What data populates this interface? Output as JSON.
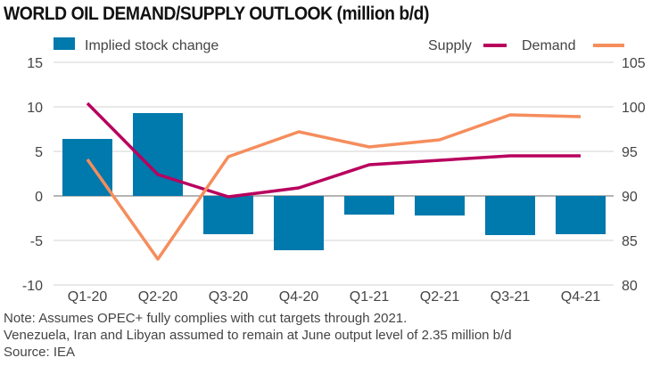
{
  "chart_data": {
    "type": "bar+line",
    "title": "WORLD OIL DEMAND/SUPPLY OUTLOOK (million b/d)",
    "categories": [
      "Q1-20",
      "Q2-20",
      "Q3-20",
      "Q4-20",
      "Q1-21",
      "Q2-21",
      "Q3-21",
      "Q4-21"
    ],
    "left_axis": {
      "ylim": [
        -10,
        15
      ],
      "ticks": [
        15,
        10,
        5,
        0,
        -5,
        -10
      ]
    },
    "right_axis": {
      "ylim": [
        80,
        105
      ],
      "ticks": [
        105,
        100,
        95,
        90,
        85,
        80
      ]
    },
    "grid": true,
    "legend_placement": "top",
    "series": [
      {
        "name": "Implied stock change",
        "type": "bar",
        "axis": "left",
        "color": "#0079ad",
        "values": [
          6.4,
          9.3,
          -4.3,
          -6.1,
          -2.1,
          -2.2,
          -4.4,
          -4.3
        ]
      },
      {
        "name": "Supply",
        "type": "line",
        "axis": "right",
        "color": "#b8005e",
        "values": [
          100.4,
          92.4,
          89.9,
          90.9,
          93.5,
          94.0,
          94.5,
          94.5
        ]
      },
      {
        "name": "Demand",
        "type": "line",
        "axis": "right",
        "color": "#f58d5c",
        "values": [
          94.1,
          82.9,
          94.4,
          97.2,
          95.5,
          96.3,
          99.1,
          98.9
        ]
      }
    ]
  },
  "notes": {
    "line1": "Note: Assumes OPEC+ fully complies with cut targets through 2021.",
    "line2": "Venezuela, Iran and Libyan assumed to remain at June output level of 2.35 million b/d",
    "source": "Source: IEA"
  }
}
